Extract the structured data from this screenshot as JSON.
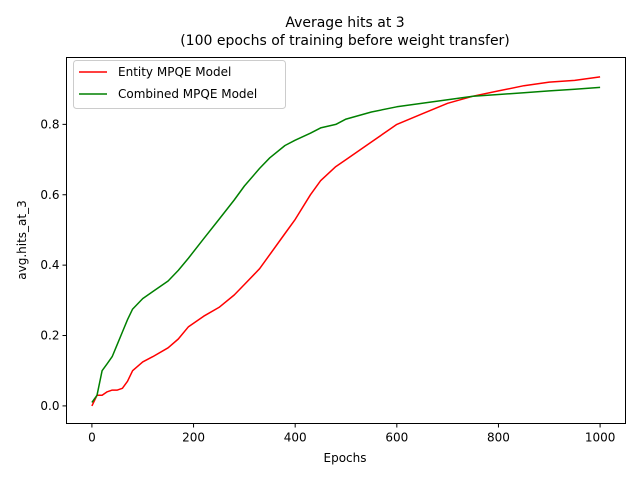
{
  "chart_data": {
    "type": "line",
    "title": "Average hits at 3",
    "subtitle": "(100 epochs of training before weight transfer)",
    "xlabel": "Epochs",
    "ylabel": "avg.hits_at_3",
    "xlim": [
      -50,
      1050
    ],
    "ylim": [
      -0.05,
      0.99
    ],
    "xticks": [
      0,
      200,
      400,
      600,
      800,
      1000
    ],
    "xtick_labels": [
      "0",
      "200",
      "400",
      "600",
      "800",
      "1000"
    ],
    "yticks": [
      0.0,
      0.2,
      0.4,
      0.6,
      0.8
    ],
    "ytick_labels": [
      "0.0",
      "0.2",
      "0.4",
      "0.6",
      "0.8"
    ],
    "grid": false,
    "legend_position": "top-left",
    "series": [
      {
        "name": "Entity MPQE Model",
        "color": "#ff0000",
        "x": [
          0,
          10,
          20,
          30,
          40,
          50,
          60,
          70,
          80,
          100,
          120,
          150,
          170,
          190,
          220,
          250,
          280,
          300,
          330,
          350,
          380,
          400,
          430,
          450,
          480,
          500,
          550,
          600,
          650,
          700,
          750,
          800,
          850,
          900,
          950,
          1000
        ],
        "y": [
          0.0,
          0.03,
          0.03,
          0.04,
          0.045,
          0.045,
          0.05,
          0.07,
          0.1,
          0.125,
          0.14,
          0.165,
          0.19,
          0.225,
          0.255,
          0.28,
          0.315,
          0.345,
          0.39,
          0.43,
          0.49,
          0.53,
          0.6,
          0.64,
          0.68,
          0.7,
          0.75,
          0.8,
          0.83,
          0.86,
          0.88,
          0.895,
          0.91,
          0.92,
          0.925,
          0.935
        ]
      },
      {
        "name": "Combined MPQE Model",
        "color": "#008000",
        "x": [
          0,
          10,
          20,
          30,
          40,
          50,
          60,
          70,
          80,
          100,
          120,
          150,
          170,
          190,
          220,
          250,
          280,
          300,
          330,
          350,
          380,
          400,
          430,
          450,
          480,
          500,
          550,
          600,
          650,
          700,
          750,
          800,
          850,
          900,
          950,
          1000
        ],
        "y": [
          0.01,
          0.03,
          0.1,
          0.12,
          0.14,
          0.175,
          0.21,
          0.245,
          0.275,
          0.305,
          0.325,
          0.355,
          0.385,
          0.42,
          0.475,
          0.53,
          0.585,
          0.625,
          0.675,
          0.705,
          0.74,
          0.755,
          0.775,
          0.79,
          0.8,
          0.815,
          0.835,
          0.85,
          0.86,
          0.87,
          0.88,
          0.885,
          0.89,
          0.895,
          0.9,
          0.905
        ]
      }
    ]
  }
}
